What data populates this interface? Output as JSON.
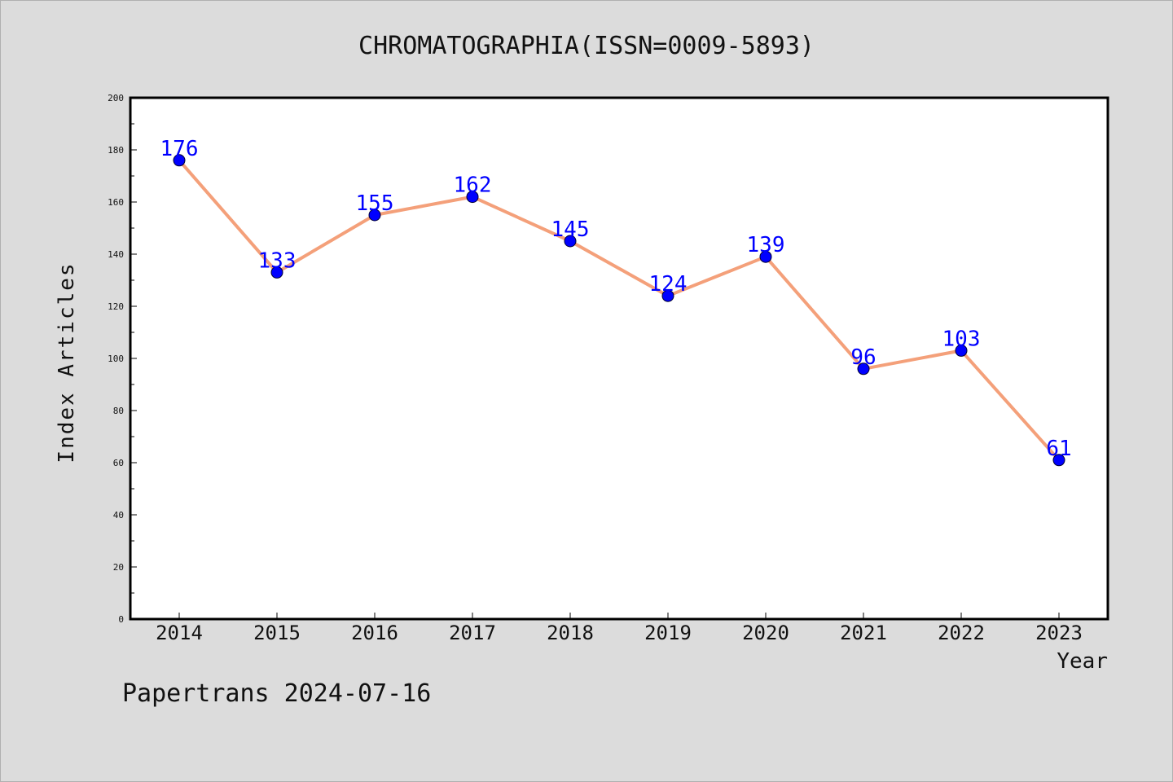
{
  "footer": {
    "watermark": "Papertrans 2024-07-16"
  },
  "colors": {
    "line": "#f4a07a",
    "point": "#0000ff",
    "label": "#0000ff",
    "background": "#dcdcdc",
    "plot_bg": "#ffffff"
  },
  "chart_data": {
    "type": "line",
    "title": "CHROMATOGRAPHIA(ISSN=0009-5893)",
    "xlabel": "Year",
    "ylabel": "Index Articles",
    "categories": [
      "2014",
      "2015",
      "2016",
      "2017",
      "2018",
      "2019",
      "2020",
      "2021",
      "2022",
      "2023"
    ],
    "series": [
      {
        "values": [
          176,
          133,
          155,
          162,
          145,
          124,
          139,
          96,
          103,
          61
        ]
      }
    ],
    "ylim": [
      0,
      200
    ],
    "yticks": [
      0,
      20,
      40,
      60,
      80,
      100,
      120,
      140,
      160,
      180,
      200
    ],
    "grid": false,
    "legend": "none"
  }
}
